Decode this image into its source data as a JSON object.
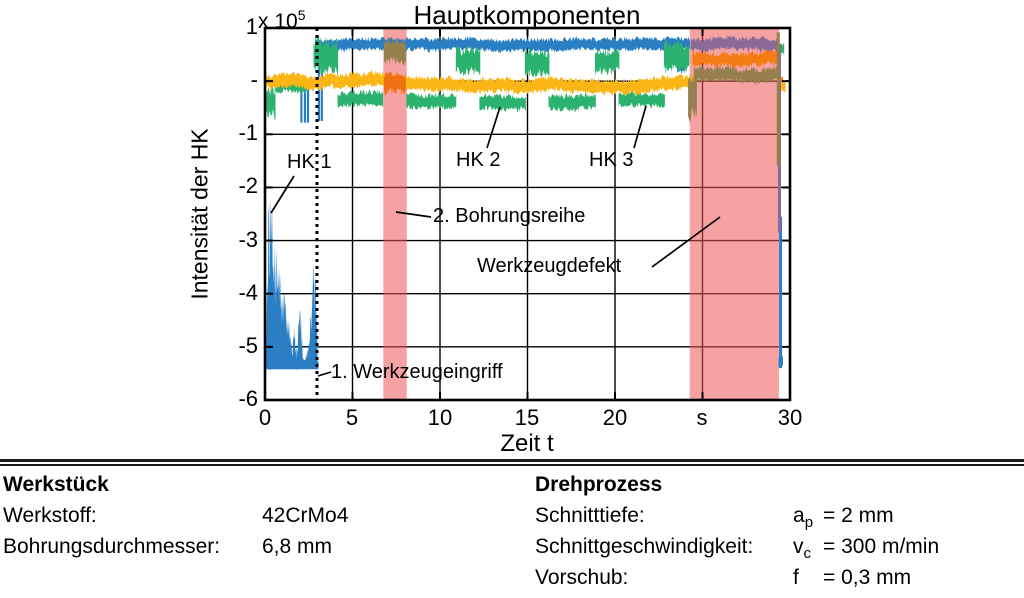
{
  "chart": {
    "title": "Hauptkomponenten",
    "y_axis": {
      "label": "Intensität der HK",
      "exponent_prefix": "x 10",
      "exponent": "5",
      "ticks": [
        "1",
        "-",
        "-1",
        "-2",
        "-3",
        "-4",
        "-5",
        "-6"
      ]
    },
    "x_axis": {
      "label": "Zeit t",
      "ticks": [
        "0",
        "5",
        "10",
        "15",
        "20",
        "s",
        "30"
      ]
    },
    "annotations": {
      "hk1": "HK 1",
      "hk2": "HK 2",
      "hk3": "HK 3",
      "bohrungsreihe": "2. Bohrungsreihe",
      "werkzeugdefekt": "Werkzeugdefekt",
      "werkzeugeingriff": "1. Werkzeugeingriff"
    }
  },
  "chart_data": {
    "type": "line",
    "title": "Hauptkomponenten",
    "xlabel": "Zeit t",
    "x_unit": "s",
    "ylabel": "Intensität der HK",
    "y_scale_factor": "x 10^5",
    "xlim": [
      0,
      30
    ],
    "ylim": [
      -6,
      1
    ],
    "xticks": [
      0,
      5,
      10,
      15,
      20,
      25,
      30
    ],
    "xtick_labels": [
      "0",
      "5",
      "10",
      "15",
      "20",
      "s",
      "30"
    ],
    "yticks": [
      1,
      0,
      -1,
      -2,
      -3,
      -4,
      -5,
      -6
    ],
    "ytick_labels": [
      "1",
      "-",
      "-1",
      "-2",
      "-3",
      "-4",
      "-5",
      "-6"
    ],
    "grid": true,
    "event_line": {
      "label": "1. Werkzeugeingriff",
      "t": 2.97,
      "style": "dotted"
    },
    "highlight_regions": [
      {
        "label": "2. Bohrungsreihe",
        "t": [
          6.76,
          8.1
        ],
        "color": "#ee5555"
      },
      {
        "label": "Werkzeugdefekt",
        "t": [
          24.27,
          29.37
        ],
        "color": "#ee5555"
      }
    ],
    "series": [
      {
        "name": "HK 1",
        "color": "#2a7fc4",
        "segments": [
          {
            "type": "spike_fill",
            "t": [
              0.06,
              3.02
            ],
            "base": -5.42,
            "envelope": [
              [
                0.06,
                -5.1
              ],
              [
                0.18,
                -2.35
              ],
              [
                0.3,
                -2.2
              ],
              [
                0.42,
                -2.5
              ],
              [
                0.52,
                -3.05
              ],
              [
                0.62,
                -3.0
              ],
              [
                0.72,
                -3.55
              ],
              [
                0.85,
                -3.5
              ],
              [
                0.95,
                -4.1
              ],
              [
                1.1,
                -4.0
              ],
              [
                1.25,
                -4.4
              ],
              [
                1.4,
                -4.2
              ],
              [
                1.55,
                -5.05
              ],
              [
                1.7,
                -4.6
              ],
              [
                1.82,
                -5.1
              ],
              [
                1.95,
                -4.3
              ],
              [
                2.05,
                -4.35
              ],
              [
                2.18,
                -5.2
              ],
              [
                2.35,
                -5.15
              ],
              [
                2.5,
                -4.95
              ],
              [
                2.62,
                -4.3
              ],
              [
                2.75,
                -3.45
              ],
              [
                2.88,
                -3.65
              ],
              [
                2.98,
                -4.6
              ],
              [
                3.02,
                -5.3
              ]
            ]
          },
          {
            "type": "band",
            "t": [
              0.06,
              3.08
            ],
            "center": -5.33,
            "amp": 0.1
          },
          {
            "type": "band",
            "t": [
              2.9,
              24.3
            ],
            "center": 0.68,
            "amp": 0.14
          },
          {
            "type": "band",
            "t": [
              23.55,
              23.95
            ],
            "center": 0.3,
            "amp": 0.18
          },
          {
            "type": "vspikes",
            "t": [
              2.02,
              2.5
            ],
            "y": [
              -0.05,
              -0.78
            ],
            "count": 3
          },
          {
            "type": "vspikes",
            "t": [
              3.05,
              3.3
            ],
            "y": [
              0.5,
              -0.75
            ],
            "count": 2
          },
          {
            "type": "vline",
            "t": 29.46,
            "y": [
              -2.55,
              -5.4
            ],
            "w": 3
          },
          {
            "type": "band",
            "t": [
              29.35,
              29.62
            ],
            "center": -5.28,
            "amp": 0.13
          }
        ]
      },
      {
        "name": "HK 2",
        "color": "#2bb26e",
        "segments": [
          {
            "type": "band",
            "t": [
              0.05,
              0.6
            ],
            "center": -0.42,
            "amp": 0.33
          },
          {
            "type": "band",
            "t": [
              0.55,
              2.4
            ],
            "center": -0.1,
            "amp": 0.13
          },
          {
            "type": "band",
            "t": [
              2.78,
              4.2
            ],
            "center": 0.42,
            "amp": 0.38
          },
          {
            "type": "band",
            "t": [
              4.15,
              6.78
            ],
            "center": -0.36,
            "amp": 0.17
          },
          {
            "type": "band",
            "t": [
              8.08,
              10.95
            ],
            "center": -0.38,
            "amp": 0.17
          },
          {
            "type": "band",
            "t": [
              10.9,
              12.3
            ],
            "center": 0.38,
            "amp": 0.28
          },
          {
            "type": "band",
            "t": [
              12.25,
              14.9
            ],
            "center": -0.42,
            "amp": 0.17
          },
          {
            "type": "band",
            "t": [
              14.85,
              16.25
            ],
            "center": 0.35,
            "amp": 0.28
          },
          {
            "type": "band",
            "t": [
              16.2,
              18.9
            ],
            "center": -0.38,
            "amp": 0.17
          },
          {
            "type": "band",
            "t": [
              18.85,
              20.25
            ],
            "center": 0.35,
            "amp": 0.27
          },
          {
            "type": "band",
            "t": [
              20.2,
              22.85
            ],
            "center": -0.33,
            "amp": 0.16
          },
          {
            "type": "band",
            "t": [
              22.8,
              24.25
            ],
            "center": 0.42,
            "amp": 0.33
          },
          {
            "type": "band",
            "t": [
              29.42,
              29.68
            ],
            "center": 0.6,
            "amp": 0.14
          }
        ]
      },
      {
        "name": "HK 3",
        "color": "#fbb615",
        "segments": [
          {
            "type": "band",
            "t": [
              0.02,
              24.6
            ],
            "center": [
              [
                0.02,
                -0.02
              ],
              [
                3,
                0.0
              ],
              [
                6.2,
                0.06
              ],
              [
                8.3,
                -0.02
              ],
              [
                13,
                -0.08
              ],
              [
                17,
                -0.05
              ],
              [
                20.5,
                -0.1
              ],
              [
                23,
                -0.04
              ],
              [
                24.6,
                0.0
              ]
            ],
            "amp": 0.16
          },
          {
            "type": "band",
            "t": [
              29.4,
              29.75
            ],
            "center": -0.1,
            "amp": 0.12
          }
        ]
      },
      {
        "name": "2. Bohrungsreihe (braun)",
        "color": "#95804e",
        "segments": [
          {
            "type": "band",
            "t": [
              6.8,
              8.06
            ],
            "center": 0.53,
            "amp": 0.27
          }
        ]
      },
      {
        "name": "2. Bohrungsreihe (orange)",
        "color": "#ee7010",
        "segments": [
          {
            "type": "band",
            "t": [
              6.8,
              8.06
            ],
            "center": -0.07,
            "amp": 0.22
          }
        ]
      },
      {
        "name": "Werkzeugdefekt (violett)",
        "color": "#8a6a97",
        "segments": [
          {
            "type": "band",
            "t": [
              24.35,
              29.3
            ],
            "center": 0.7,
            "amp": 0.15
          },
          {
            "type": "vline",
            "t": 29.4,
            "y": [
              0.7,
              -2.85
            ],
            "w": 3
          }
        ]
      },
      {
        "name": "Werkzeugdefekt (orange)",
        "color": "#f57c12",
        "segments": [
          {
            "type": "band",
            "t": [
              24.42,
              29.32
            ],
            "center": 0.42,
            "amp": 0.16
          },
          {
            "type": "band",
            "t": [
              29.45,
              29.6
            ],
            "center": 0.02,
            "amp": 0.07
          }
        ]
      },
      {
        "name": "Werkzeugdefekt (braun)",
        "color": "#95804e",
        "segments": [
          {
            "type": "band",
            "t": [
              24.18,
              24.7
            ],
            "center": -0.3,
            "amp": 0.5
          },
          {
            "type": "band",
            "t": [
              24.5,
              29.25
            ],
            "center": 0.12,
            "amp": 0.16
          },
          {
            "type": "vline",
            "t": 29.33,
            "y": [
              0.92,
              -1.6
            ],
            "w": 3
          }
        ]
      }
    ]
  },
  "info": {
    "left": {
      "header": "Werkstück",
      "rows": [
        {
          "label": "Werkstoff:",
          "value": "42CrMo4"
        },
        {
          "label": "Bohrungsdurchmesser:",
          "value": "6,8 mm"
        }
      ]
    },
    "right": {
      "header": "Drehprozess",
      "rows": [
        {
          "label": "Schnitttiefe:",
          "sym": "a",
          "sub": "p",
          "value": "= 2 mm"
        },
        {
          "label": "Schnittgeschwindigkeit:",
          "sym": "v",
          "sub": "c",
          "value": "= 300 m/min"
        },
        {
          "label": "Vorschub:",
          "sym": "f",
          "sub": "",
          "value": "= 0,3 mm"
        }
      ]
    }
  }
}
